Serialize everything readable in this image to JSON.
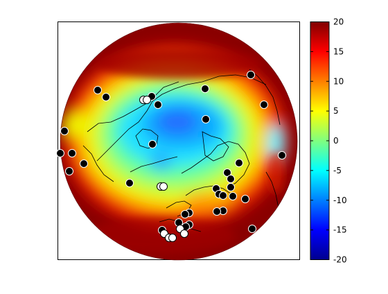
{
  "chart_data": {
    "type": "heatmap",
    "projection": "north-polar-stereographic",
    "title": "",
    "colormap": "jet",
    "colorbar": {
      "min": -20,
      "max": 20,
      "ticks": [
        20,
        15,
        10,
        5,
        0,
        -5,
        -10,
        -15,
        -20
      ],
      "tick_labels": [
        "20",
        "15",
        "10",
        "5",
        "0",
        "-5",
        "-10",
        "-15",
        "-20"
      ],
      "placement": "right"
    },
    "field_summary": {
      "polar_center_value": -4,
      "mid_latitude_ring_value": 8,
      "outer_edge_value": 20
    },
    "markers": {
      "filled_count": 34,
      "open_count": 9
    }
  }
}
